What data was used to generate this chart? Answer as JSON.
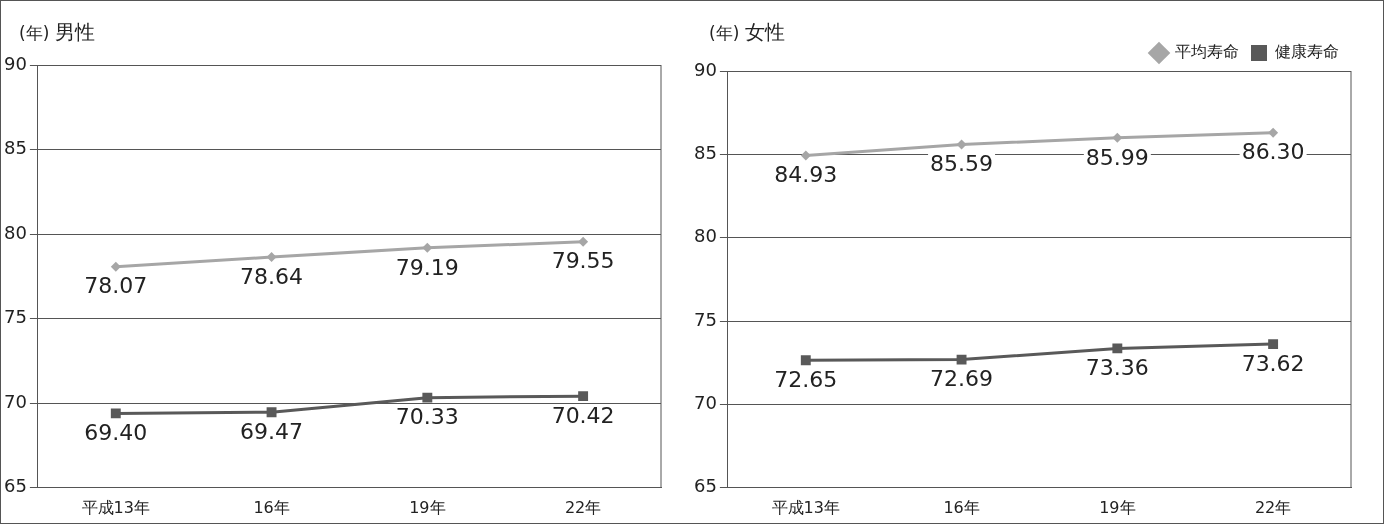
{
  "chart_data": [
    {
      "type": "line",
      "title": "男性",
      "ylabel": "(年)",
      "categories": [
        "平成13年",
        "16年",
        "19年",
        "22年"
      ],
      "ylim": [
        65,
        90
      ],
      "yticks": [
        65,
        70,
        75,
        80,
        85,
        90
      ],
      "grid": "y",
      "legend": false,
      "series": [
        {
          "color": "#a6a6a6",
          "marker": "diamond",
          "values": [
            78.07,
            78.64,
            79.19,
            79.55
          ],
          "value_labels": [
            "78.07",
            "78.64",
            "79.19",
            "79.55"
          ]
        },
        {
          "color": "#595959",
          "marker": "square",
          "values": [
            69.4,
            69.47,
            70.33,
            70.42
          ],
          "value_labels": [
            "69.40",
            "69.47",
            "70.33",
            "70.42"
          ]
        }
      ]
    },
    {
      "type": "line",
      "title": "女性",
      "ylabel": "(年)",
      "categories": [
        "平成13年",
        "16年",
        "19年",
        "22年"
      ],
      "ylim": [
        65,
        90
      ],
      "yticks": [
        65,
        70,
        75,
        80,
        85,
        90
      ],
      "grid": "y",
      "legend": "top right",
      "series": [
        {
          "name": "平均寿命",
          "color": "#a6a6a6",
          "marker": "diamond",
          "values": [
            84.93,
            85.59,
            85.99,
            86.3
          ],
          "value_labels": [
            "84.93",
            "85.59",
            "85.99",
            "86.30"
          ]
        },
        {
          "name": "健康寿命",
          "color": "#595959",
          "marker": "square",
          "values": [
            72.65,
            72.69,
            73.36,
            73.62
          ],
          "value_labels": [
            "72.65",
            "72.69",
            "73.36",
            "73.62"
          ]
        }
      ]
    }
  ]
}
